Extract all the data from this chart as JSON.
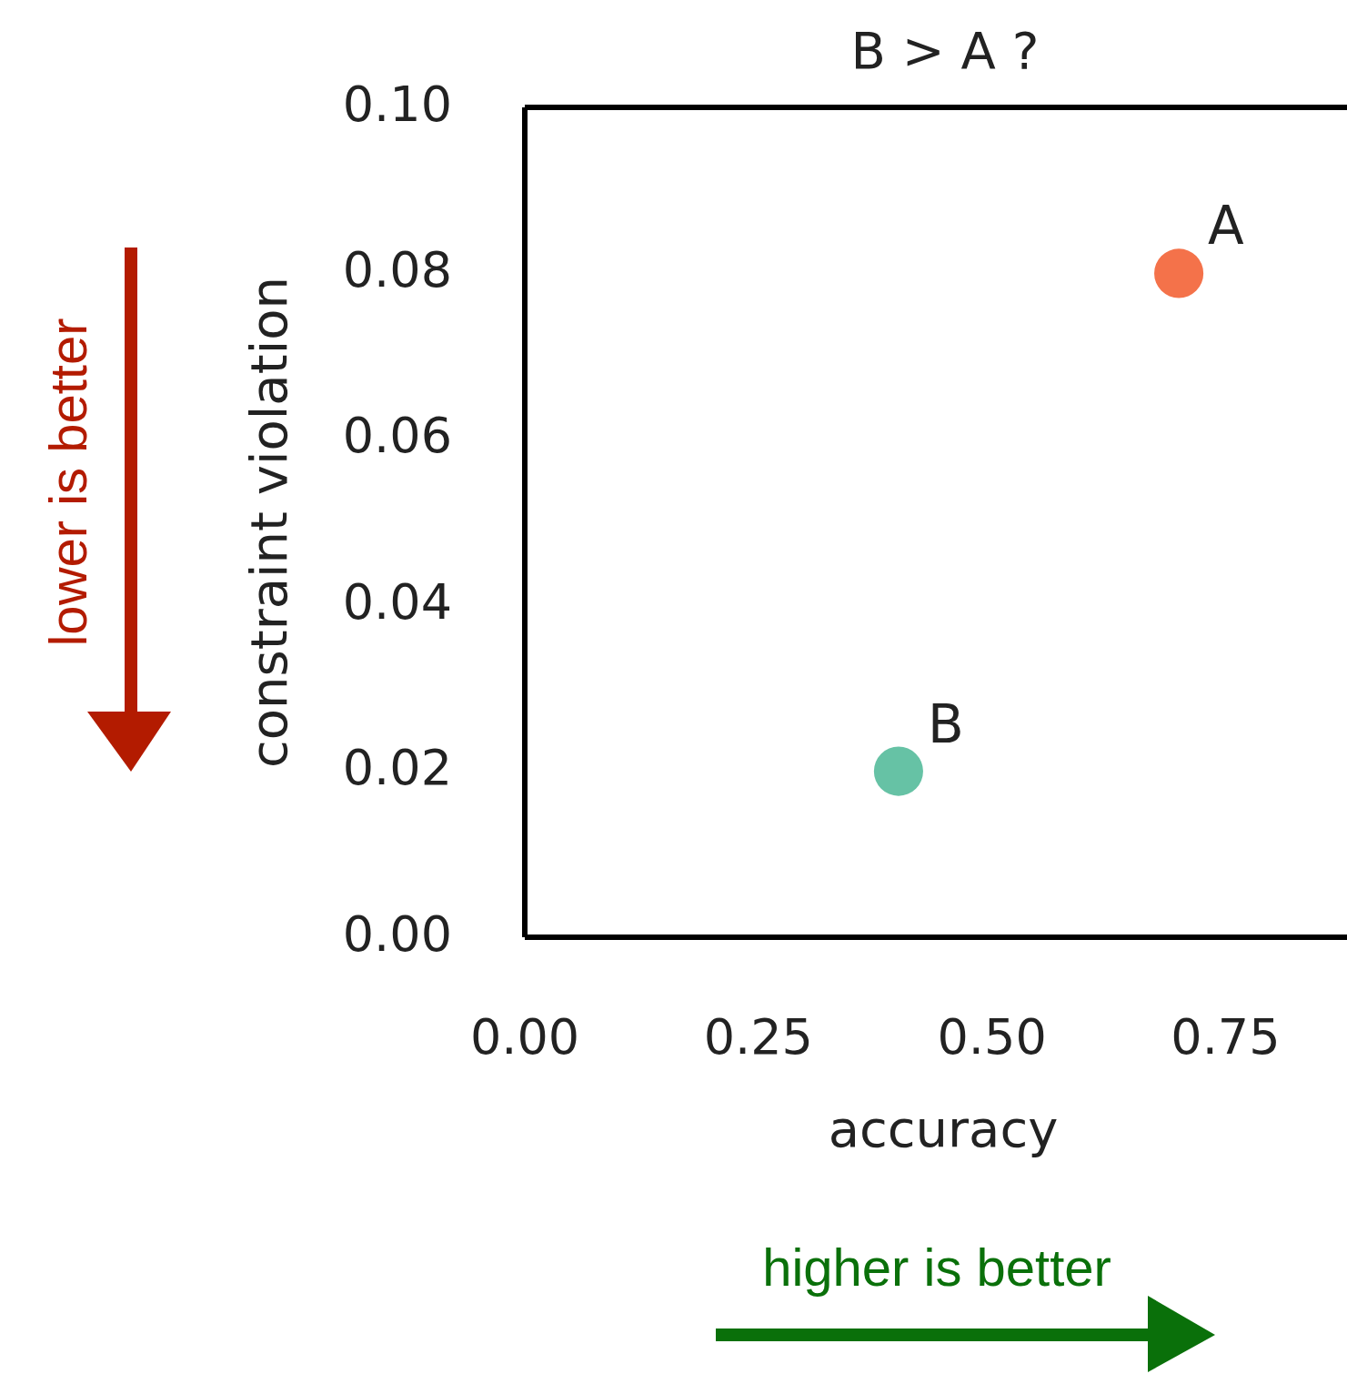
{
  "chart_data": {
    "type": "scatter",
    "title": "B > A ?",
    "xlabel": "accuracy",
    "ylabel": "constraint violation",
    "xlim": [
      0,
      0.88
    ],
    "xticks": [
      {
        "value": 0,
        "label": "0.00"
      },
      {
        "value": 0.25,
        "label": "0.25"
      },
      {
        "value": 0.5,
        "label": "0.50"
      },
      {
        "value": 0.75,
        "label": "0.75"
      }
    ],
    "ylim": [
      0,
      0.1
    ],
    "yticks": [
      {
        "value": 0,
        "label": "0.00"
      },
      {
        "value": 0.02,
        "label": "0.02"
      },
      {
        "value": 0.04,
        "label": "0.04"
      },
      {
        "value": 0.06,
        "label": "0.06"
      },
      {
        "value": 0.08,
        "label": "0.08"
      },
      {
        "value": 0.1,
        "label": "0.10"
      }
    ],
    "grid": false,
    "marker": "circle",
    "series": [
      {
        "name": "A",
        "color": "#f4724a",
        "x": [
          0.7
        ],
        "values": [
          0.08
        ]
      },
      {
        "name": "B",
        "color": "#66c2a5",
        "x": [
          0.4
        ],
        "values": [
          0.02
        ]
      }
    ],
    "annotations": [
      "lower is better",
      "higher is better"
    ]
  }
}
